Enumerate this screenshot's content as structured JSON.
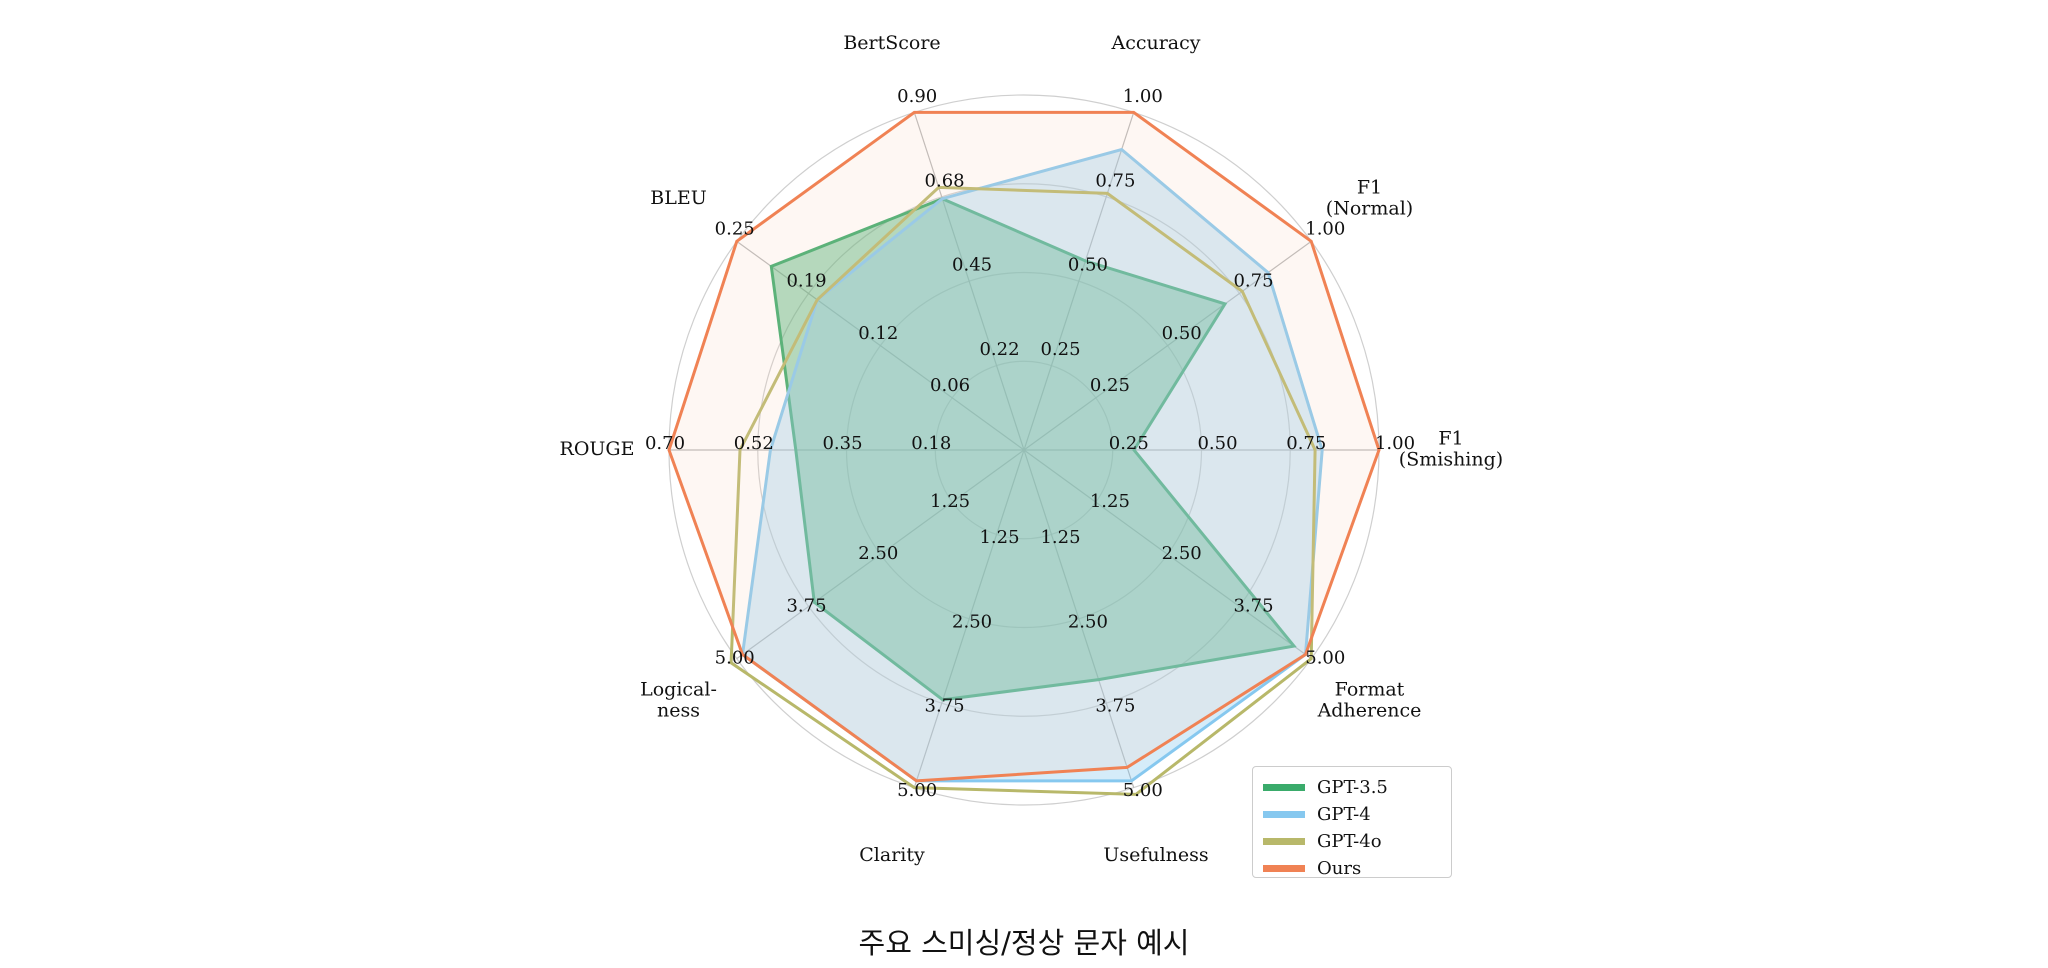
{
  "chart_data": {
    "type": "radar",
    "axes": [
      {
        "label": "F1\n(Smishing)",
        "ticks": [
          "0.25",
          "0.50",
          "0.75",
          "1.00"
        ],
        "max": 1.0
      },
      {
        "label": "F1\n(Normal)",
        "ticks": [
          "0.25",
          "0.50",
          "0.75",
          "1.00"
        ],
        "max": 1.0
      },
      {
        "label": "Accuracy",
        "ticks": [
          "0.25",
          "0.50",
          "0.75",
          "1.00"
        ],
        "max": 1.0
      },
      {
        "label": "BertScore",
        "ticks": [
          "0.22",
          "0.45",
          "0.68",
          "0.90"
        ],
        "max": 0.9
      },
      {
        "label": "BLEU",
        "ticks": [
          "0.06",
          "0.12",
          "0.19",
          "0.25"
        ],
        "max": 0.25
      },
      {
        "label": "ROUGE",
        "ticks": [
          "0.18",
          "0.35",
          "0.52",
          "0.70"
        ],
        "max": 0.7
      },
      {
        "label": "Logical-\nness",
        "ticks": [
          "1.25",
          "2.50",
          "3.75",
          "5.00"
        ],
        "max": 5.0
      },
      {
        "label": "Clarity",
        "ticks": [
          "1.25",
          "2.50",
          "3.75",
          "5.00"
        ],
        "max": 5.0
      },
      {
        "label": "Usefulness",
        "ticks": [
          "1.25",
          "2.50",
          "3.75",
          "5.00"
        ],
        "max": 5.0
      },
      {
        "label": "Format\nAdherence",
        "ticks": [
          "1.25",
          "2.50",
          "3.75",
          "5.00"
        ],
        "max": 5.0
      }
    ],
    "series": [
      {
        "name": "GPT-3.5",
        "color": "#3aab6b",
        "fill": "#3aab6b",
        "fill_opacity": 0.45,
        "values": [
          0.31,
          0.7,
          0.56,
          0.67,
          0.22,
          0.45,
          3.65,
          3.7,
          3.4,
          4.7
        ]
      },
      {
        "name": "GPT-4",
        "color": "#86c8ef",
        "fill": "#86c8ef",
        "fill_opacity": 0.35,
        "values": [
          0.84,
          0.85,
          0.89,
          0.67,
          0.18,
          0.5,
          4.9,
          4.9,
          4.9,
          4.9
        ]
      },
      {
        "name": "GPT-4o",
        "color": "#b8b86a",
        "fill": "none",
        "fill_opacity": 0,
        "values": [
          0.82,
          0.76,
          0.76,
          0.7,
          0.18,
          0.56,
          5.1,
          5.0,
          5.1,
          5.0
        ]
      },
      {
        "name": "Ours",
        "color": "#f08254",
        "fill": "#f7d2bf",
        "fill_opacity": 0.18,
        "values": [
          1.0,
          1.0,
          1.0,
          0.9,
          0.25,
          0.7,
          4.9,
          4.9,
          4.7,
          4.9
        ]
      }
    ],
    "legend_position": "bottom-right"
  },
  "caption": "주요 스미싱/정상 문자 예시"
}
